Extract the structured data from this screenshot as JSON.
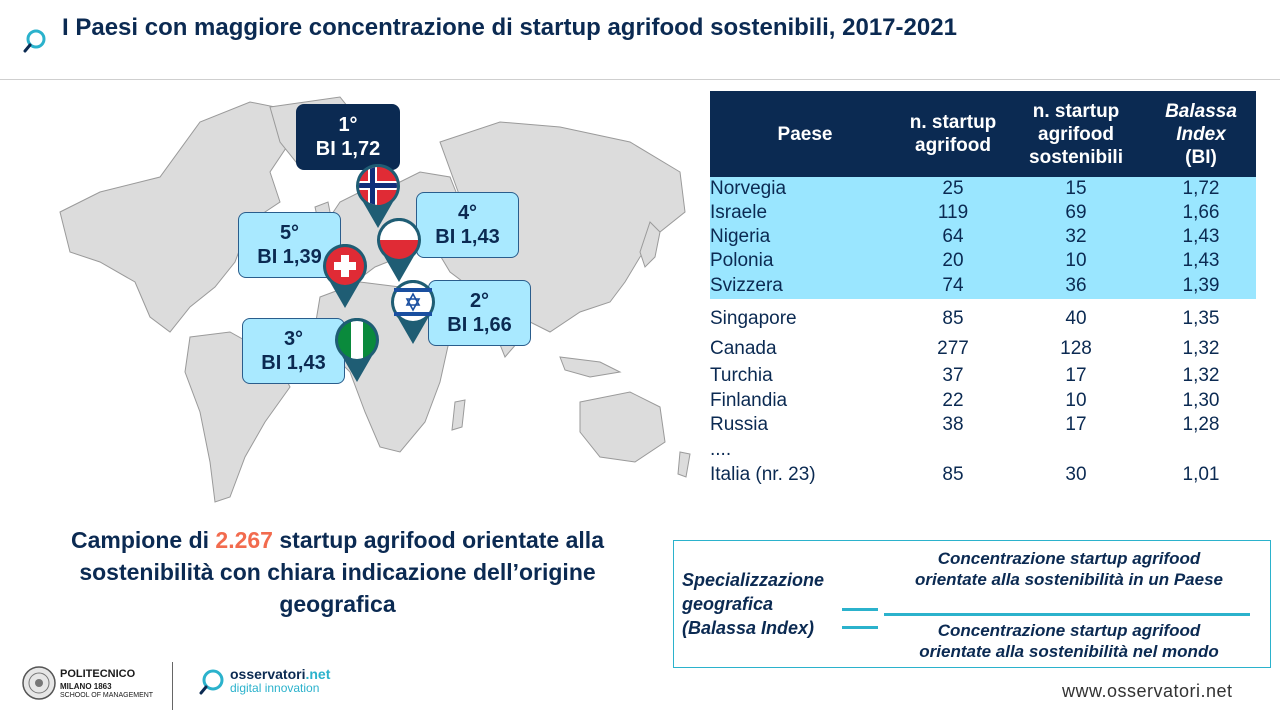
{
  "header": {
    "title": "I Paesi con maggiore concentrazione di startup agrifood sostenibili, 2017-2021"
  },
  "map_labels": [
    {
      "rank": "1°",
      "bi": "BI 1,72",
      "flag": "norway-flag-icon"
    },
    {
      "rank": "2°",
      "bi": "BI 1,66",
      "flag": "israel-flag-icon"
    },
    {
      "rank": "3°",
      "bi": "BI 1,43",
      "flag": "nigeria-flag-icon"
    },
    {
      "rank": "4°",
      "bi": "BI 1,43",
      "flag": "poland-flag-icon"
    },
    {
      "rank": "5°",
      "bi": "BI 1,39",
      "flag": "switzerland-flag-icon"
    }
  ],
  "table": {
    "headers": [
      "Paese",
      "n. startup agrifood",
      "n. startup agrifood sostenibili",
      "Balassa Index (BI)"
    ],
    "header_lines": {
      "h0": [
        "Paese"
      ],
      "h1": [
        "n. startup",
        "agrifood"
      ],
      "h2": [
        "n. startup",
        "agrifood",
        "sostenibili"
      ],
      "h3": [
        "Balassa",
        "Index",
        "(BI)"
      ]
    },
    "rows": [
      [
        "Norvegia",
        "25",
        "15",
        "1,72"
      ],
      [
        "Israele",
        "119",
        "69",
        "1,66"
      ],
      [
        "Nigeria",
        "64",
        "32",
        "1,43"
      ],
      [
        "Polonia",
        "20",
        "10",
        "1,43"
      ],
      [
        "Svizzera",
        "74",
        "36",
        "1,39"
      ],
      [
        "Singapore",
        "85",
        "40",
        "1,35"
      ],
      [
        "Canada",
        "277",
        "128",
        "1,32"
      ],
      [
        "Turchia",
        "37",
        "17",
        "1,32"
      ],
      [
        "Finlandia",
        "22",
        "10",
        "1,30"
      ],
      [
        "Russia",
        "38",
        "17",
        "1,28"
      ],
      [
        "....",
        "",
        "",
        ""
      ],
      [
        "Italia (nr. 23)",
        "85",
        "30",
        "1,01"
      ]
    ]
  },
  "caption": {
    "pre": "Campione di ",
    "number": "2.267",
    "post": " startup agrifood orientate alla sostenibilità con chiara indicazione dell’origine geografica"
  },
  "formula": {
    "left_lines": [
      "Specializzazione",
      "geografica",
      "(Balassa Index)"
    ],
    "numerator": [
      "Concentrazione startup agrifood",
      "orientate alla sostenibilità in un Paese"
    ],
    "denominator": [
      "Concentrazione startup agrifood",
      "orientate alla sostenibilità nel mondo"
    ]
  },
  "footer": {
    "poli_name": "POLITECNICO",
    "poli_sub1": "MILANO 1863",
    "poli_sub2": "SCHOOL OF MANAGEMENT",
    "oss_name": "osservatori",
    "oss_net": ".net",
    "oss_sub": "digital innovation",
    "url": "www.osservatori.net"
  },
  "colors": {
    "navy": "#0b2a52",
    "highlight_blue": "#9ae6ff",
    "accent_orange": "#f26b4e",
    "accent_cyan": "#2bb2cc"
  }
}
